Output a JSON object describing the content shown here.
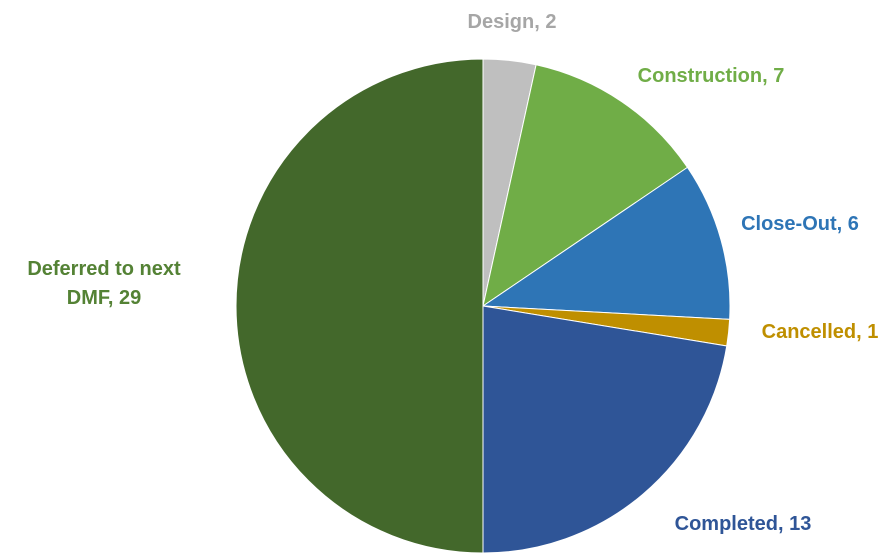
{
  "chart_data": {
    "type": "pie",
    "title": "",
    "start_angle_deg": 0,
    "direction": "clockwise",
    "legend": "none",
    "slices": [
      {
        "label": "Design",
        "value": 2,
        "color": "#bfbfbf",
        "label_color": "#a6a6a6"
      },
      {
        "label": "Construction",
        "value": 7,
        "color": "#70ad47",
        "label_color": "#70ad47"
      },
      {
        "label": "Close-Out",
        "value": 6,
        "color": "#2e75b6",
        "label_color": "#2e75b6"
      },
      {
        "label": "Cancelled",
        "value": 1,
        "color": "#bf8f00",
        "label_color": "#bf8f00"
      },
      {
        "label": "Completed",
        "value": 13,
        "color": "#2f5597",
        "label_color": "#2f5597"
      },
      {
        "label": "Deferred to next DMF",
        "value": 29,
        "color": "#43682b",
        "label_color": "#548235"
      }
    ],
    "data_labels": [
      [
        "Design,  2"
      ],
      [
        "Construction,  7"
      ],
      [
        "Close-Out,  6"
      ],
      [
        "Cancelled,  1"
      ],
      [
        "Completed,  13"
      ],
      [
        "Deferred to next",
        "DMF,  29"
      ]
    ]
  }
}
